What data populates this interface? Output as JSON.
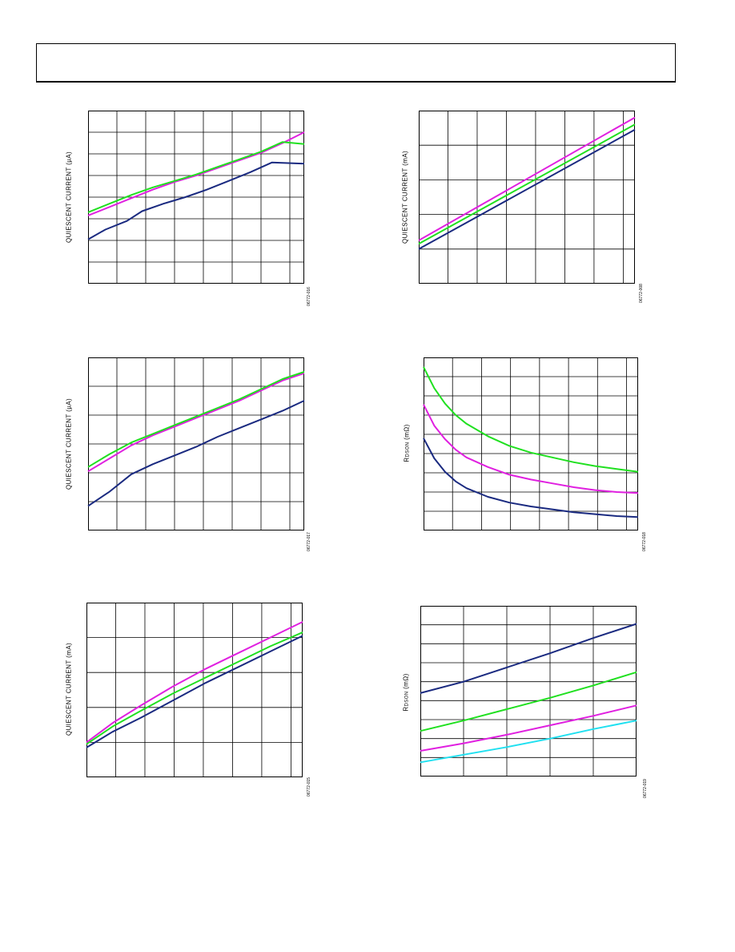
{
  "page": {
    "header": ""
  },
  "chart_data": [
    {
      "type": "line",
      "id": "c1",
      "ylabel": "QUIESCENT CURRENT (µA)",
      "figure_code": "06772-016",
      "xlim": [
        0,
        1
      ],
      "ylim": [
        0,
        8
      ],
      "grid": true,
      "series": [
        {
          "color": "#1a2a80",
          "x": [
            0,
            0.08,
            0.18,
            0.25,
            0.35,
            0.45,
            0.55,
            0.65,
            0.75,
            0.85,
            1.0
          ],
          "y": [
            2.05,
            2.5,
            2.9,
            3.35,
            3.7,
            4.0,
            4.35,
            4.75,
            5.15,
            5.6,
            5.55
          ]
        },
        {
          "color": "#e020e0",
          "x": [
            0,
            0.1,
            0.2,
            0.3,
            0.4,
            0.5,
            0.6,
            0.7,
            0.8,
            0.9,
            1.0
          ],
          "y": [
            3.15,
            3.55,
            3.95,
            4.35,
            4.7,
            5.0,
            5.35,
            5.7,
            6.05,
            6.5,
            7.0
          ]
        },
        {
          "color": "#20e020",
          "x": [
            0,
            0.1,
            0.2,
            0.3,
            0.4,
            0.5,
            0.6,
            0.7,
            0.8,
            0.9,
            1.0
          ],
          "y": [
            3.3,
            3.7,
            4.1,
            4.45,
            4.75,
            5.05,
            5.4,
            5.75,
            6.1,
            6.55,
            6.45
          ]
        }
      ]
    },
    {
      "type": "line",
      "id": "c2",
      "ylabel": "QUIESCENT CURRENT (mA)",
      "figure_code": "06772-008",
      "xlim": [
        0,
        1
      ],
      "ylim": [
        0,
        5
      ],
      "grid": true,
      "series": [
        {
          "color": "#1a2a80",
          "x": [
            0,
            1.0
          ],
          "y": [
            1.0,
            4.45
          ]
        },
        {
          "color": "#20e020",
          "x": [
            0,
            1.0
          ],
          "y": [
            1.15,
            4.6
          ]
        },
        {
          "color": "#e020e0",
          "x": [
            0,
            1.0
          ],
          "y": [
            1.25,
            4.8
          ]
        }
      ]
    },
    {
      "type": "line",
      "id": "c3",
      "ylabel": "QUIESCENT CURRENT (µA)",
      "figure_code": "06772-017",
      "xlim": [
        0,
        1
      ],
      "ylim": [
        0,
        6
      ],
      "grid": true,
      "series": [
        {
          "color": "#1a2a80",
          "x": [
            0,
            0.1,
            0.2,
            0.3,
            0.4,
            0.5,
            0.6,
            0.7,
            0.8,
            0.9,
            1.0
          ],
          "y": [
            0.85,
            1.35,
            1.95,
            2.3,
            2.6,
            2.9,
            3.25,
            3.55,
            3.85,
            4.15,
            4.5
          ]
        },
        {
          "color": "#e020e0",
          "x": [
            0,
            0.1,
            0.2,
            0.3,
            0.4,
            0.5,
            0.6,
            0.7,
            0.8,
            0.9,
            1.0
          ],
          "y": [
            2.05,
            2.5,
            2.95,
            3.3,
            3.6,
            3.9,
            4.2,
            4.5,
            4.85,
            5.2,
            5.45
          ]
        },
        {
          "color": "#20e020",
          "x": [
            0,
            0.1,
            0.2,
            0.3,
            0.4,
            0.5,
            0.6,
            0.7,
            0.8,
            0.9,
            1.0
          ],
          "y": [
            2.2,
            2.65,
            3.05,
            3.35,
            3.65,
            3.95,
            4.25,
            4.55,
            4.9,
            5.25,
            5.5
          ]
        }
      ]
    },
    {
      "type": "line",
      "id": "c4",
      "ylabel_main": "R",
      "ylabel_sub": "DSON",
      "ylabel_unit": " (mΩ)",
      "figure_code": "06772-018",
      "xlim": [
        0,
        1
      ],
      "ylim": [
        0,
        9
      ],
      "grid": true,
      "series": [
        {
          "color": "#1a2a80",
          "x": [
            0,
            0.05,
            0.1,
            0.15,
            0.2,
            0.3,
            0.4,
            0.5,
            0.6,
            0.7,
            0.8,
            0.9,
            1.0
          ],
          "y": [
            4.8,
            3.75,
            3.05,
            2.55,
            2.2,
            1.75,
            1.45,
            1.25,
            1.1,
            0.95,
            0.85,
            0.75,
            0.7
          ]
        },
        {
          "color": "#e020e0",
          "x": [
            0,
            0.05,
            0.1,
            0.15,
            0.2,
            0.3,
            0.4,
            0.5,
            0.6,
            0.7,
            0.8,
            0.9,
            1.0
          ],
          "y": [
            6.55,
            5.45,
            4.75,
            4.2,
            3.8,
            3.3,
            2.9,
            2.65,
            2.45,
            2.25,
            2.1,
            2.0,
            1.95
          ]
        },
        {
          "color": "#20e020",
          "x": [
            0,
            0.05,
            0.1,
            0.15,
            0.2,
            0.3,
            0.4,
            0.5,
            0.6,
            0.7,
            0.8,
            0.9,
            1.0
          ],
          "y": [
            8.5,
            7.4,
            6.6,
            6.0,
            5.55,
            4.9,
            4.4,
            4.05,
            3.8,
            3.55,
            3.35,
            3.2,
            3.05
          ]
        }
      ]
    },
    {
      "type": "line",
      "id": "c5",
      "ylabel": "QUIESCENT CURRENT (mA)",
      "figure_code": "06772-015",
      "xlim": [
        0,
        1
      ],
      "ylim": [
        0,
        5
      ],
      "grid": true,
      "series": [
        {
          "color": "#1a2a80",
          "x": [
            0,
            0.12,
            0.25,
            0.4,
            0.55,
            0.7,
            0.85,
            1.0
          ],
          "y": [
            0.85,
            1.3,
            1.7,
            2.2,
            2.7,
            3.15,
            3.6,
            4.05
          ]
        },
        {
          "color": "#20e020",
          "x": [
            0,
            0.12,
            0.25,
            0.4,
            0.55,
            0.7,
            0.85,
            1.0
          ],
          "y": [
            0.95,
            1.45,
            1.9,
            2.4,
            2.85,
            3.3,
            3.75,
            4.15
          ]
        },
        {
          "color": "#e020e0",
          "x": [
            0,
            0.12,
            0.25,
            0.4,
            0.55,
            0.7,
            0.85,
            1.0
          ],
          "y": [
            1.0,
            1.55,
            2.05,
            2.6,
            3.1,
            3.55,
            4.0,
            4.45
          ]
        }
      ]
    },
    {
      "type": "line",
      "id": "c6",
      "ylabel_main": "R",
      "ylabel_sub": "DSON",
      "ylabel_unit": " (mΩ)",
      "figure_code": "06772-019",
      "xlim": [
        0,
        1
      ],
      "ylim": [
        0,
        9
      ],
      "grid": true,
      "series": [
        {
          "color": "#1a2a80",
          "x": [
            0,
            0.2,
            0.4,
            0.6,
            0.8,
            1.0
          ],
          "y": [
            4.4,
            5.0,
            5.75,
            6.5,
            7.3,
            8.05
          ]
        },
        {
          "color": "#20e020",
          "x": [
            0,
            0.2,
            0.4,
            0.6,
            0.8,
            1.0
          ],
          "y": [
            2.4,
            2.95,
            3.55,
            4.15,
            4.8,
            5.5
          ]
        },
        {
          "color": "#e020e0",
          "x": [
            0,
            0.2,
            0.4,
            0.6,
            0.8,
            1.0
          ],
          "y": [
            1.35,
            1.75,
            2.2,
            2.7,
            3.2,
            3.75
          ]
        },
        {
          "color": "#20e0f0",
          "x": [
            0,
            0.2,
            0.4,
            0.6,
            0.8,
            1.0
          ],
          "y": [
            0.75,
            1.15,
            1.55,
            2.0,
            2.5,
            2.95
          ]
        }
      ]
    }
  ]
}
